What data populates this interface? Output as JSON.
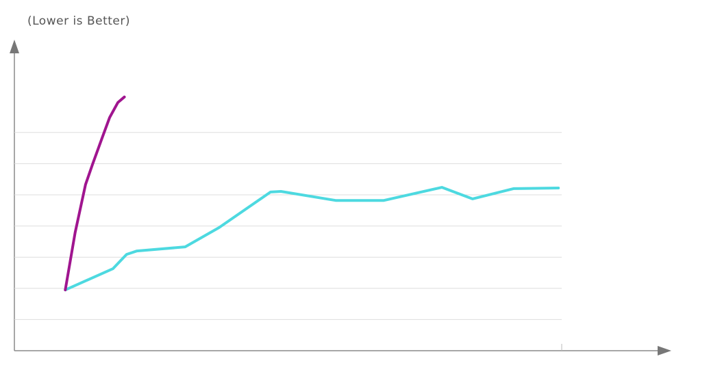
{
  "chart_data": {
    "type": "line",
    "subtitle": "(Lower is Better)",
    "xlim": [
      0,
      100
    ],
    "ylim": [
      0,
      10
    ],
    "yticks": [
      1,
      2,
      3,
      4,
      5,
      6,
      7
    ],
    "grid": true,
    "series": [
      {
        "color": "#4dd9e0",
        "x": [
          9.3,
          18.0,
          20.5,
          22.4,
          31.2,
          37.4,
          46.8,
          48.7,
          58.7,
          67.5,
          78.1,
          83.7,
          91.2,
          99.4
        ],
        "values": [
          1.95,
          2.63,
          3.09,
          3.2,
          3.33,
          3.95,
          5.09,
          5.11,
          4.82,
          4.82,
          5.24,
          4.87,
          5.2,
          5.22
        ]
      },
      {
        "color": "#a0158f",
        "x": [
          9.3,
          11.1,
          13.0,
          14.3,
          16.1,
          17.4,
          18.9,
          20.1
        ],
        "values": [
          1.95,
          3.79,
          5.33,
          5.99,
          6.86,
          7.48,
          7.96,
          8.14
        ]
      }
    ]
  }
}
